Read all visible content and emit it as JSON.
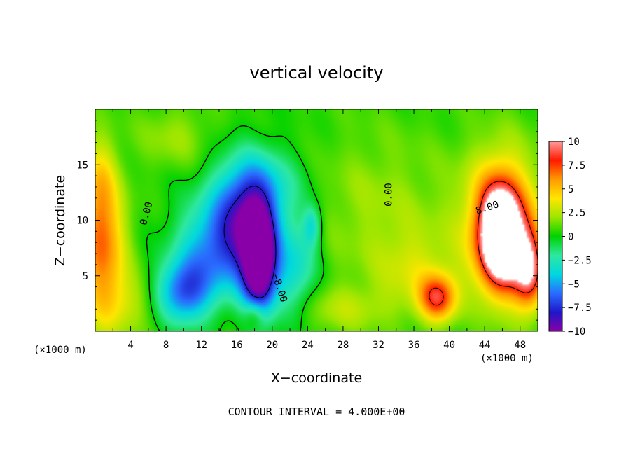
{
  "chart_data": {
    "type": "heatmap",
    "title": "vertical velocity",
    "xlabel": "X−coordinate",
    "ylabel": "Z−coordinate",
    "x_unit_left": "(×1000 m)",
    "x_unit_right": "(×1000 m)",
    "xlim": [
      0,
      50
    ],
    "ylim": [
      0,
      20
    ],
    "x_ticks": [
      4,
      8,
      12,
      16,
      20,
      24,
      28,
      32,
      36,
      40,
      44,
      48
    ],
    "x_tick_labels": [
      "4",
      "8",
      "12",
      "16",
      "20",
      "24",
      "28",
      "32",
      "36",
      "40",
      "44",
      "48"
    ],
    "y_ticks": [
      5,
      10,
      15
    ],
    "y_tick_labels": [
      "5",
      "10",
      "15"
    ],
    "colorbar": {
      "range": [
        -10,
        10
      ],
      "ticks": [
        10,
        7.5,
        5,
        2.5,
        0,
        -2.5,
        -5,
        -7.5,
        -10
      ],
      "tick_labels": [
        "10",
        "7.5",
        "5",
        "2.5",
        "0",
        "−2.5",
        "−5",
        "−7.5",
        "−10"
      ]
    },
    "contour_labels": [
      {
        "text": "0.00",
        "x": 5.8,
        "y": 10.6,
        "rotate": -75
      },
      {
        "text": "0.00",
        "x": 33.2,
        "y": 12.3,
        "rotate": -90
      },
      {
        "text": "8.00",
        "x": 44.3,
        "y": 11.1,
        "rotate": -18
      },
      {
        "text": "−8.00",
        "x": 20.8,
        "y": 3.9,
        "rotate": 72
      }
    ],
    "features": [
      {
        "x": 18.5,
        "y": 6.0,
        "value": -12,
        "sx": 1.3,
        "sy": 3.2
      },
      {
        "x": 17.2,
        "y": 9.5,
        "value": -7,
        "sx": 2.5,
        "sy": 3.5
      },
      {
        "x": 13.0,
        "y": 7.5,
        "value": -5,
        "sx": 2.8,
        "sy": 3.0
      },
      {
        "x": 10.0,
        "y": 3.5,
        "value": -6.5,
        "sx": 2.2,
        "sy": 2.0
      },
      {
        "x": 22.5,
        "y": 5.5,
        "value": -4,
        "sx": 1.8,
        "sy": 3.0
      },
      {
        "x": 18.5,
        "y": 13.0,
        "value": -3.5,
        "sx": 3.5,
        "sy": 2.5
      },
      {
        "x": 24.5,
        "y": 9.5,
        "value": -3.5,
        "sx": 0.7,
        "sy": 1.3
      },
      {
        "x": 45.8,
        "y": 8.5,
        "value": 13,
        "sx": 1.7,
        "sy": 3.2
      },
      {
        "x": 46.0,
        "y": 10.0,
        "value": 5,
        "sx": 3.2,
        "sy": 4.5
      },
      {
        "x": 49.0,
        "y": 5.5,
        "value": 8,
        "sx": 1.2,
        "sy": 2.5
      },
      {
        "x": 0.8,
        "y": 7.5,
        "value": 6,
        "sx": 1.8,
        "sy": 4.5
      },
      {
        "x": 0.5,
        "y": 13.5,
        "value": 2.5,
        "sx": 1.2,
        "sy": 3.0
      },
      {
        "x": 38.7,
        "y": 3.0,
        "value": 7,
        "sx": 1.5,
        "sy": 1.5
      },
      {
        "x": 36.0,
        "y": 5.5,
        "value": 2,
        "sx": 3.0,
        "sy": 2.5
      },
      {
        "x": 3.5,
        "y": 2.5,
        "value": 2,
        "sx": 2.5,
        "sy": 2.0
      },
      {
        "x": 32.0,
        "y": 11.0,
        "value": 1.5,
        "sx": 6.0,
        "sy": 5.0
      },
      {
        "x": 28.0,
        "y": 2.0,
        "value": 1.8,
        "sx": 4.0,
        "sy": 1.5
      },
      {
        "x": 18.0,
        "y": 1.5,
        "value": 3,
        "sx": 0.8,
        "sy": 1.0
      },
      {
        "x": 9.0,
        "y": 17.5,
        "value": 1.5,
        "sx": 3.0,
        "sy": 2.0
      }
    ],
    "grid": false
  },
  "footer": {
    "contour_interval": "CONTOUR INTERVAL = 4.000E+00"
  },
  "colors": {
    "scale": [
      "#8a00a8",
      "#1f16c8",
      "#2a6cff",
      "#00d8e0",
      "#2ee8a0",
      "#00d200",
      "#9ce600",
      "#ffe600",
      "#ff9a00",
      "#ff1a00",
      "#ff9a9a"
    ]
  }
}
